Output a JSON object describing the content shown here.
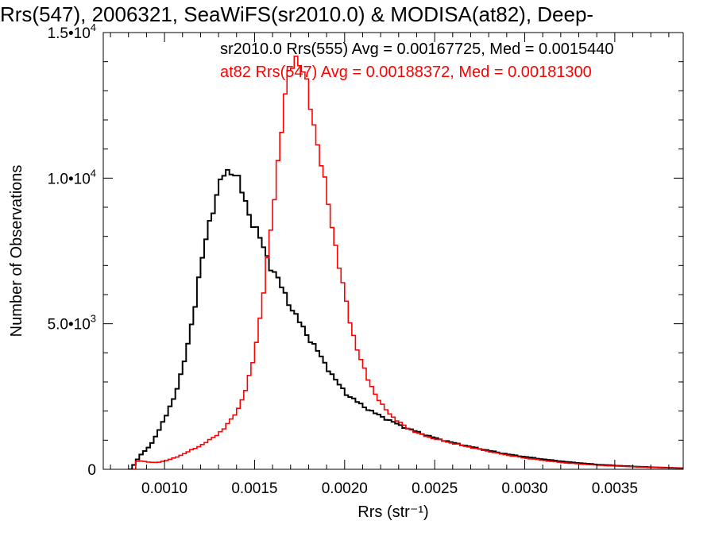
{
  "chart_data": {
    "type": "histogram",
    "title": "Rrs(547), 2006321, SeaWiFS(sr2010.0) & MODISA(at82), Deep-",
    "xlabel": "Rrs (str⁻¹)",
    "ylabel": "Number of Observations",
    "xlim": [
      0.00066,
      0.00388
    ],
    "ylim": [
      0,
      15000
    ],
    "grid": false,
    "legend_position": "top-right",
    "x_ticks": [
      {
        "value": 0.001,
        "label": "0.0010"
      },
      {
        "value": 0.0015,
        "label": "0.0015"
      },
      {
        "value": 0.002,
        "label": "0.0020"
      },
      {
        "value": 0.0025,
        "label": "0.0025"
      },
      {
        "value": 0.003,
        "label": "0.0030"
      },
      {
        "value": 0.0035,
        "label": "0.0035"
      }
    ],
    "y_ticks": [
      {
        "value": 0,
        "mantissa": "0",
        "exponent": ""
      },
      {
        "value": 5000,
        "mantissa": "5.0•10",
        "exponent": "3"
      },
      {
        "value": 10000,
        "mantissa": "1.0•10",
        "exponent": "4"
      },
      {
        "value": 15000,
        "mantissa": "1.5•10",
        "exponent": "4"
      }
    ],
    "series": [
      {
        "name": "sr2010.0 Rrs(555) Avg = 0.00167725, Med = 0.0015440",
        "color": "#000000",
        "points": [
          [
            0.0008,
            0
          ],
          [
            0.00082,
            150
          ],
          [
            0.00084,
            350
          ],
          [
            0.00086,
            500
          ],
          [
            0.00088,
            620
          ],
          [
            0.0009,
            750
          ],
          [
            0.00092,
            900
          ],
          [
            0.00094,
            1150
          ],
          [
            0.00096,
            1350
          ],
          [
            0.00098,
            1600
          ],
          [
            0.001,
            1850
          ],
          [
            0.00102,
            2150
          ],
          [
            0.00104,
            2450
          ],
          [
            0.00106,
            2800
          ],
          [
            0.00108,
            3200
          ],
          [
            0.0011,
            3700
          ],
          [
            0.00112,
            4300
          ],
          [
            0.00114,
            5000
          ],
          [
            0.00116,
            5700
          ],
          [
            0.00118,
            6500
          ],
          [
            0.0012,
            7200
          ],
          [
            0.00122,
            7900
          ],
          [
            0.00124,
            8500
          ],
          [
            0.00126,
            9000
          ],
          [
            0.00128,
            9400
          ],
          [
            0.0013,
            9800
          ],
          [
            0.00132,
            10100
          ],
          [
            0.00134,
            10200
          ],
          [
            0.00136,
            10300
          ],
          [
            0.00138,
            10200
          ],
          [
            0.0014,
            9900
          ],
          [
            0.00142,
            9500
          ],
          [
            0.00144,
            9150
          ],
          [
            0.00146,
            8800
          ],
          [
            0.00148,
            8500
          ],
          [
            0.0015,
            8200
          ],
          [
            0.00152,
            7900
          ],
          [
            0.00154,
            7600
          ],
          [
            0.00156,
            7300
          ],
          [
            0.00158,
            7000
          ],
          [
            0.0016,
            6750
          ],
          [
            0.00162,
            6500
          ],
          [
            0.00164,
            6250
          ],
          [
            0.00166,
            6000
          ],
          [
            0.00168,
            5750
          ],
          [
            0.0017,
            5500
          ],
          [
            0.00172,
            5250
          ],
          [
            0.00174,
            5050
          ],
          [
            0.00176,
            4850
          ],
          [
            0.00178,
            4650
          ],
          [
            0.0018,
            4450
          ],
          [
            0.00182,
            4250
          ],
          [
            0.00184,
            4050
          ],
          [
            0.00186,
            3850
          ],
          [
            0.00188,
            3650
          ],
          [
            0.0019,
            3450
          ],
          [
            0.00192,
            3250
          ],
          [
            0.00194,
            3050
          ],
          [
            0.00196,
            2900
          ],
          [
            0.00198,
            2750
          ],
          [
            0.002,
            2600
          ],
          [
            0.00205,
            2350
          ],
          [
            0.0021,
            2150
          ],
          [
            0.00215,
            1950
          ],
          [
            0.0022,
            1800
          ],
          [
            0.00225,
            1650
          ],
          [
            0.0023,
            1500
          ],
          [
            0.00235,
            1380
          ],
          [
            0.0024,
            1270
          ],
          [
            0.00245,
            1160
          ],
          [
            0.0025,
            1060
          ],
          [
            0.0026,
            900
          ],
          [
            0.0027,
            760
          ],
          [
            0.0028,
            630
          ],
          [
            0.0029,
            510
          ],
          [
            0.003,
            420
          ],
          [
            0.0031,
            340
          ],
          [
            0.0032,
            270
          ],
          [
            0.0033,
            210
          ],
          [
            0.0034,
            160
          ],
          [
            0.0035,
            125
          ],
          [
            0.0036,
            95
          ],
          [
            0.0037,
            70
          ],
          [
            0.0038,
            50
          ],
          [
            0.00388,
            40
          ]
        ]
      },
      {
        "name": "at82 Rrs(547) Avg = 0.00188372, Med = 0.00181300",
        "color": "#ff0000",
        "points": [
          [
            0.00082,
            0
          ],
          [
            0.00083,
            250
          ],
          [
            0.00085,
            300
          ],
          [
            0.00087,
            280
          ],
          [
            0.0009,
            250
          ],
          [
            0.00093,
            230
          ],
          [
            0.00096,
            250
          ],
          [
            0.001,
            300
          ],
          [
            0.00104,
            380
          ],
          [
            0.00108,
            480
          ],
          [
            0.00112,
            600
          ],
          [
            0.00116,
            720
          ],
          [
            0.0012,
            850
          ],
          [
            0.00124,
            1000
          ],
          [
            0.00128,
            1180
          ],
          [
            0.00132,
            1400
          ],
          [
            0.00136,
            1700
          ],
          [
            0.0014,
            2100
          ],
          [
            0.00144,
            2700
          ],
          [
            0.00146,
            3150
          ],
          [
            0.00148,
            3700
          ],
          [
            0.0015,
            4400
          ],
          [
            0.00152,
            5200
          ],
          [
            0.00154,
            6100
          ],
          [
            0.00156,
            7100
          ],
          [
            0.00158,
            8200
          ],
          [
            0.0016,
            9400
          ],
          [
            0.00162,
            10600
          ],
          [
            0.00164,
            11700
          ],
          [
            0.00166,
            12700
          ],
          [
            0.00168,
            13500
          ],
          [
            0.0017,
            14000
          ],
          [
            0.00172,
            14200
          ],
          [
            0.00174,
            14000
          ],
          [
            0.00176,
            13600
          ],
          [
            0.00178,
            13100
          ],
          [
            0.0018,
            12500
          ],
          [
            0.00182,
            11900
          ],
          [
            0.00184,
            11200
          ],
          [
            0.00186,
            10500
          ],
          [
            0.00188,
            9800
          ],
          [
            0.0019,
            9100
          ],
          [
            0.00192,
            8400
          ],
          [
            0.00194,
            7700
          ],
          [
            0.00196,
            7000
          ],
          [
            0.00198,
            6300
          ],
          [
            0.002,
            5700
          ],
          [
            0.00202,
            5100
          ],
          [
            0.00204,
            4600
          ],
          [
            0.00206,
            4150
          ],
          [
            0.00208,
            3750
          ],
          [
            0.0021,
            3400
          ],
          [
            0.00212,
            3100
          ],
          [
            0.00214,
            2850
          ],
          [
            0.00216,
            2600
          ],
          [
            0.00218,
            2380
          ],
          [
            0.0022,
            2180
          ],
          [
            0.00225,
            1850
          ],
          [
            0.0023,
            1580
          ],
          [
            0.00235,
            1380
          ],
          [
            0.0024,
            1230
          ],
          [
            0.00245,
            1120
          ],
          [
            0.0025,
            1030
          ],
          [
            0.0026,
            880
          ],
          [
            0.0027,
            740
          ],
          [
            0.0028,
            600
          ],
          [
            0.0029,
            480
          ],
          [
            0.003,
            380
          ],
          [
            0.0031,
            300
          ],
          [
            0.0032,
            230
          ],
          [
            0.0033,
            180
          ],
          [
            0.0034,
            140
          ],
          [
            0.0035,
            110
          ],
          [
            0.0036,
            85
          ],
          [
            0.0037,
            65
          ],
          [
            0.0038,
            50
          ],
          [
            0.00388,
            40
          ]
        ]
      }
    ]
  }
}
